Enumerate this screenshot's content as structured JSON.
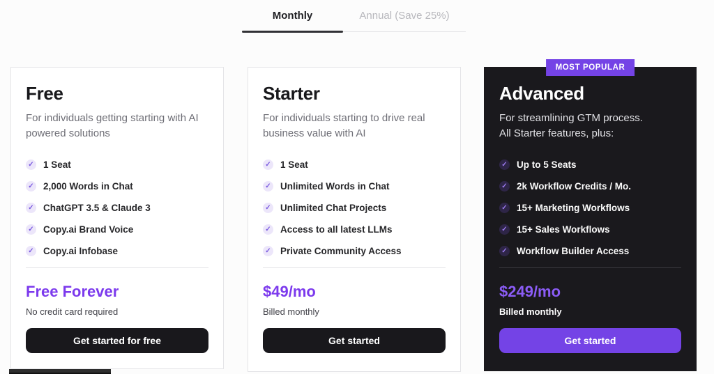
{
  "tabs": {
    "monthly": "Monthly",
    "annual": "Annual (Save 25%)"
  },
  "colors": {
    "accent_purple": "#7c3aed",
    "badge_purple": "#7443e6",
    "dark_card_bg": "#1a191d",
    "dark_button": "#19181c",
    "advanced_price_purple": "#8b5cf6"
  },
  "plans": [
    {
      "name": "Free",
      "description_lines": [
        "For individuals getting starting with AI",
        "powered solutions"
      ],
      "features": [
        "1 Seat",
        "2,000 Words in Chat",
        "ChatGPT 3.5 & Claude 3",
        "Copy.ai Brand Voice",
        "Copy.ai Infobase"
      ],
      "price": "Free Forever",
      "price_note": "No credit card required",
      "cta": "Get started for free"
    },
    {
      "name": "Starter",
      "description_lines": [
        "For individuals starting to drive real",
        "business value with AI"
      ],
      "features": [
        "1 Seat",
        "Unlimited Words in Chat",
        "Unlimited Chat Projects",
        "Access to all latest LLMs",
        "Private Community Access"
      ],
      "price": "$49/mo",
      "price_note": "Billed monthly",
      "cta": "Get started"
    },
    {
      "name": "Advanced",
      "badge": "MOST POPULAR",
      "description_lines": [
        "For streamlining GTM process.",
        "All Starter features, plus:"
      ],
      "features": [
        "Up to 5 Seats",
        "2k Workflow Credits / Mo.",
        "15+ Marketing Workflows",
        "15+ Sales Workflows",
        "Workflow Builder Access"
      ],
      "price": "$249/mo",
      "price_note": "Billed monthly",
      "cta": "Get started"
    }
  ],
  "check_glyph": "✓"
}
